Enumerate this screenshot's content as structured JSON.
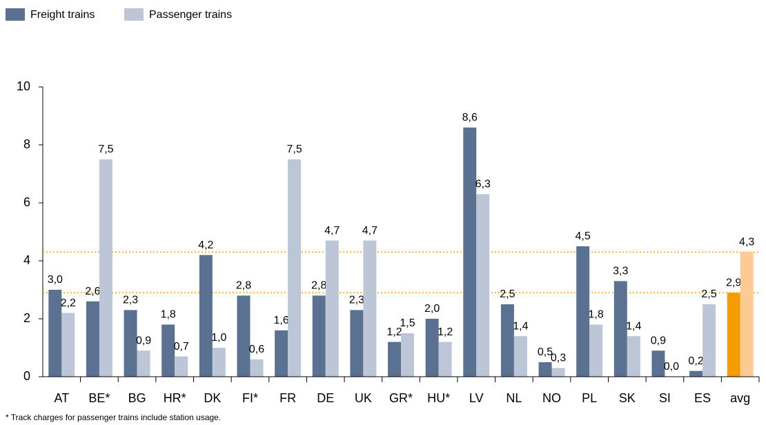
{
  "chart_data": {
    "type": "bar",
    "categories": [
      "AT",
      "BE*",
      "BG",
      "HR*",
      "DK",
      "FI*",
      "FR",
      "DE",
      "UK",
      "GR*",
      "HU*",
      "LV",
      "NL",
      "NO",
      "PL",
      "SK",
      "SI",
      "ES",
      "avg"
    ],
    "series": [
      {
        "name": "Freight trains",
        "color": "#5b7192",
        "colors": [
          "#5b7192",
          "#5b7192",
          "#5b7192",
          "#5b7192",
          "#5b7192",
          "#5b7192",
          "#5b7192",
          "#5b7192",
          "#5b7192",
          "#5b7192",
          "#5b7192",
          "#5b7192",
          "#5b7192",
          "#5b7192",
          "#5b7192",
          "#5b7192",
          "#5b7192",
          "#5b7192",
          "#f59c00"
        ],
        "values": [
          3.0,
          2.6,
          2.3,
          1.8,
          4.2,
          2.8,
          1.6,
          2.8,
          2.3,
          1.2,
          2.0,
          8.6,
          2.5,
          0.5,
          4.5,
          3.3,
          0.9,
          0.2,
          2.9
        ],
        "value_labels": [
          "3,0",
          "2,6",
          "2,3",
          "1,8",
          "4,2",
          "2,8",
          "1,6",
          "2,8",
          "2,3",
          "1,2",
          "2,0",
          "8,6",
          "2,5",
          "0,5",
          "4,5",
          "3,3",
          "0,9",
          "0,2",
          "2,9"
        ]
      },
      {
        "name": "Passenger trains",
        "color": "#bcc6d6",
        "colors": [
          "#bcc6d6",
          "#bcc6d6",
          "#bcc6d6",
          "#bcc6d6",
          "#bcc6d6",
          "#bcc6d6",
          "#bcc6d6",
          "#bcc6d6",
          "#bcc6d6",
          "#bcc6d6",
          "#bcc6d6",
          "#bcc6d6",
          "#bcc6d6",
          "#bcc6d6",
          "#bcc6d6",
          "#bcc6d6",
          "#bcc6d6",
          "#bcc6d6",
          "#fccb94"
        ],
        "values": [
          2.2,
          7.5,
          0.9,
          0.7,
          1.0,
          0.6,
          7.5,
          4.7,
          4.7,
          1.5,
          1.2,
          6.3,
          1.4,
          0.3,
          1.8,
          1.4,
          0.0,
          2.5,
          4.3
        ],
        "value_labels": [
          "2,2",
          "7,5",
          "0,9",
          "0,7",
          "1,0",
          "0,6",
          "7,5",
          "4,7",
          "4,7",
          "1,5",
          "1,2",
          "6,3",
          "1,4",
          "0,3",
          "1,8",
          "1,4",
          "0,0",
          "2,5",
          "4,3"
        ]
      }
    ],
    "ylim": [
      0,
      10
    ],
    "yticks": [
      0,
      2,
      4,
      6,
      8,
      10
    ],
    "reference_line_color": "#f59c00",
    "footnote": "* Track charges for passenger trains include station usage."
  }
}
